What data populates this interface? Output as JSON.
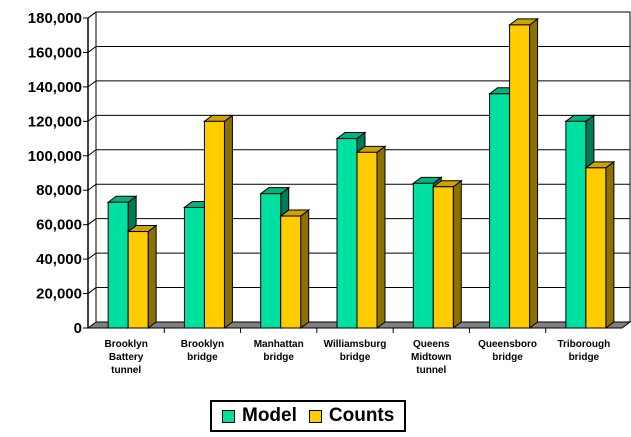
{
  "chart_data": {
    "type": "bar",
    "title": "",
    "xlabel": "",
    "ylabel": "",
    "ylim": [
      0,
      180000
    ],
    "ytick_step": 20000,
    "yticks": [
      "0",
      "20,000",
      "40,000",
      "60,000",
      "80,000",
      "100,000",
      "120,000",
      "140,000",
      "160,000",
      "180,000"
    ],
    "grid": true,
    "legend_position": "bottom",
    "categories": [
      [
        "Brooklyn",
        "Battery",
        "tunnel"
      ],
      [
        "Brooklyn",
        "bridge"
      ],
      [
        "Manhattan",
        "bridge"
      ],
      [
        "Williamsburg",
        "bridge"
      ],
      [
        "Queens",
        "Midtown",
        "tunnel"
      ],
      [
        "Queensboro",
        "bridge"
      ],
      [
        "Triborough",
        "bridge"
      ]
    ],
    "series": [
      {
        "name": "Model",
        "color": "#00E0A0",
        "values": [
          73000,
          70000,
          78000,
          110000,
          84000,
          136000,
          120000
        ]
      },
      {
        "name": "Counts",
        "color": "#FFCC00",
        "values": [
          56000,
          120000,
          65000,
          102000,
          82000,
          176000,
          93000
        ]
      }
    ]
  },
  "legend": {
    "model_label": "Model",
    "counts_label": "Counts"
  }
}
